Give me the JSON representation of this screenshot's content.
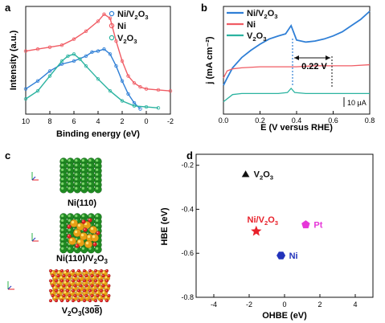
{
  "colors": {
    "ni_v2o3": "#2f7fd6",
    "ni": "#f05c64",
    "v2o3": "#2bb3a0",
    "pt": "#e637d8",
    "black": "#111111"
  },
  "chart_data": [
    {
      "panel": "a",
      "type": "line",
      "xlabel": "Binding energy (eV)",
      "ylabel": "Intensity (a.u.)",
      "xlim": [
        10,
        -2
      ],
      "xticks": [
        10,
        8,
        6,
        4,
        2,
        0,
        -2
      ],
      "legend_position": "top-right",
      "series": [
        {
          "name": "Ni/V2O3",
          "label_main": "Ni/V",
          "label_sub1": "2",
          "label_mid": "O",
          "label_sub2": "3",
          "x": [
            10,
            9,
            8,
            7,
            6,
            5,
            4.5,
            4,
            3.5,
            3,
            2.5,
            2,
            1.5,
            1,
            0.5
          ],
          "y": [
            0.22,
            0.3,
            0.4,
            0.47,
            0.5,
            0.55,
            0.59,
            0.6,
            0.62,
            0.57,
            0.45,
            0.3,
            0.17,
            0.08,
            0.02
          ]
        },
        {
          "name": "Ni",
          "label_main": "Ni",
          "x": [
            10,
            9,
            8,
            7,
            6,
            5,
            4,
            3.5,
            3,
            2.5,
            2,
            1.5,
            1,
            0.5,
            0,
            -1,
            -2
          ],
          "y": [
            0.6,
            0.62,
            0.64,
            0.66,
            0.72,
            0.8,
            0.9,
            0.97,
            0.93,
            0.7,
            0.5,
            0.35,
            0.28,
            0.24,
            0.22,
            0.21,
            0.2
          ]
        },
        {
          "name": "V2O3",
          "label_main": "V",
          "label_sub1": "2",
          "label_mid": "O",
          "label_sub2": "3",
          "x": [
            10,
            9,
            8,
            7,
            6.5,
            6,
            5.5,
            5,
            4,
            3,
            2,
            1,
            0,
            -1
          ],
          "y": [
            0.12,
            0.2,
            0.35,
            0.5,
            0.55,
            0.57,
            0.52,
            0.45,
            0.32,
            0.2,
            0.1,
            0.05,
            0.04,
            0.03
          ]
        }
      ]
    },
    {
      "panel": "b",
      "type": "line",
      "xlabel": "E (V versus RHE)",
      "ylabel": "j (mA cm⁻²)",
      "xlim": [
        0,
        0.8
      ],
      "xticks": [
        0.0,
        0.2,
        0.4,
        0.6,
        0.8
      ],
      "legend_position": "top-left",
      "annotations": {
        "gap": "0.22 V",
        "scale_bar": "10 μA"
      },
      "series": [
        {
          "name": "Ni/V2O3",
          "label_main": "Ni/V",
          "label_sub1": "2",
          "label_mid": "O",
          "label_sub2": "3",
          "x": [
            0.0,
            0.02,
            0.05,
            0.1,
            0.15,
            0.2,
            0.25,
            0.3,
            0.34,
            0.37,
            0.4,
            0.45,
            0.5,
            0.55,
            0.6,
            0.65,
            0.7,
            0.75,
            0.8
          ],
          "y": [
            0.28,
            0.35,
            0.45,
            0.55,
            0.62,
            0.68,
            0.73,
            0.76,
            0.78,
            0.86,
            0.72,
            0.7,
            0.71,
            0.73,
            0.76,
            0.8,
            0.86,
            0.92,
            1.0
          ]
        },
        {
          "name": "Ni",
          "label_main": "Ni",
          "x": [
            0.0,
            0.02,
            0.05,
            0.1,
            0.2,
            0.3,
            0.4,
            0.5,
            0.6,
            0.7,
            0.8
          ],
          "y": [
            0.35,
            0.42,
            0.44,
            0.45,
            0.46,
            0.46,
            0.46,
            0.47,
            0.47,
            0.47,
            0.48
          ]
        },
        {
          "name": "V2O3",
          "label_main": "V",
          "label_sub1": "2",
          "label_mid": "O",
          "label_sub2": "3",
          "x": [
            0.0,
            0.05,
            0.1,
            0.2,
            0.3,
            0.35,
            0.37,
            0.39,
            0.45,
            0.5,
            0.6,
            0.7,
            0.8
          ],
          "y": [
            0.12,
            0.19,
            0.2,
            0.2,
            0.2,
            0.21,
            0.25,
            0.21,
            0.2,
            0.2,
            0.2,
            0.2,
            0.2
          ]
        }
      ]
    },
    {
      "panel": "d",
      "type": "scatter",
      "xlabel": "OHBE (eV)",
      "ylabel": "HBE (eV)",
      "xlim": [
        -5,
        5
      ],
      "ylim": [
        -0.8,
        -0.15
      ],
      "xticks": [
        -4,
        -2,
        0,
        2,
        4
      ],
      "yticks": [
        -0.2,
        -0.4,
        -0.6,
        -0.8
      ],
      "points": [
        {
          "name": "V2O3",
          "label_main": "V",
          "label_sub1": "2",
          "label_mid": "O",
          "label_sub2": "3",
          "x": -2.2,
          "y": -0.24,
          "marker": "triangle",
          "color": "#111111"
        },
        {
          "name": "Ni/V2O3",
          "label_main": "Ni/V",
          "label_sub1": "2",
          "label_mid": "O",
          "label_sub2": "3",
          "x": -1.6,
          "y": -0.5,
          "marker": "star",
          "color": "#e8202a"
        },
        {
          "name": "Pt",
          "label_main": "Pt",
          "x": 1.2,
          "y": -0.47,
          "marker": "pentagon",
          "color": "#e637d8"
        },
        {
          "name": "Ni",
          "label_main": "Ni",
          "x": -0.2,
          "y": -0.61,
          "marker": "hexagon",
          "color": "#2233bb"
        }
      ]
    }
  ],
  "panel_letters": {
    "a": "a",
    "b": "b",
    "c": "c",
    "d": "d"
  },
  "structures": {
    "ni110": "Ni(110)",
    "ni110_v2o3_main": "Ni(110)/V",
    "ni110_v2o3_sub1": "2",
    "ni110_v2o3_mid": "O",
    "ni110_v2o3_sub2": "3",
    "v2o3_main": "V",
    "v2o3_sub1": "2",
    "v2o3_mid": "O",
    "v2o3_sub2": "3",
    "v2o3_facet": "(30",
    "v2o3_facet_bar": "8",
    "v2o3_facet_end": ")"
  }
}
